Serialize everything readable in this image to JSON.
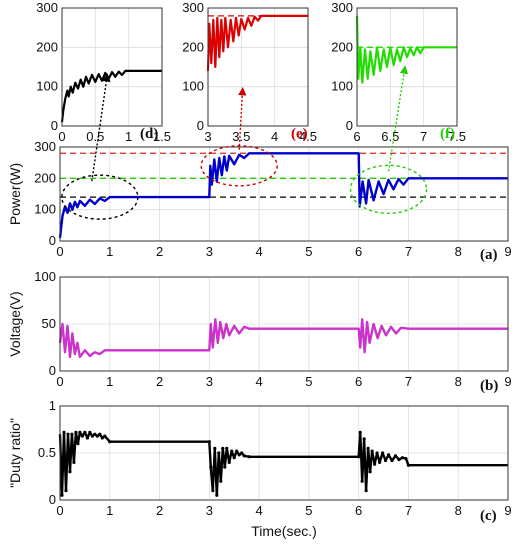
{
  "chart_data": [
    {
      "id": "inset-d",
      "type": "line",
      "tag": "(d)",
      "xlim": [
        0,
        1.5
      ],
      "ylim": [
        0,
        300
      ],
      "xticks": [
        0,
        0.5,
        1,
        1.5
      ],
      "xtick_labels": [
        "0",
        "0.5",
        "1",
        "1.5"
      ],
      "yticks": [
        0,
        100,
        200,
        300
      ],
      "ytick_labels": [
        "0",
        "100",
        "200",
        "300"
      ],
      "series": [
        {
          "color": "#000000",
          "points": [
            [
              0,
              10
            ],
            [
              0.02,
              40
            ],
            [
              0.05,
              70
            ],
            [
              0.08,
              90
            ],
            [
              0.1,
              75
            ],
            [
              0.13,
              100
            ],
            [
              0.16,
              85
            ],
            [
              0.2,
              110
            ],
            [
              0.24,
              95
            ],
            [
              0.28,
              118
            ],
            [
              0.32,
              100
            ],
            [
              0.36,
              125
            ],
            [
              0.4,
              108
            ],
            [
              0.45,
              130
            ],
            [
              0.5,
              112
            ],
            [
              0.55,
              132
            ],
            [
              0.6,
              115
            ],
            [
              0.65,
              135
            ],
            [
              0.7,
              120
            ],
            [
              0.75,
              137
            ],
            [
              0.8,
              125
            ],
            [
              0.85,
              138
            ],
            [
              0.9,
              130
            ],
            [
              0.95,
              140
            ],
            [
              1.0,
              140
            ],
            [
              1.5,
              140
            ]
          ]
        }
      ]
    },
    {
      "id": "inset-e",
      "type": "line",
      "tag": "(e)",
      "xlim": [
        3,
        4.5
      ],
      "ylim": [
        0,
        300
      ],
      "xticks": [
        3,
        3.5,
        4,
        4.5
      ],
      "xtick_labels": [
        "3",
        "3.5",
        "4",
        "4.5"
      ],
      "yticks": [
        0,
        100,
        200,
        300
      ],
      "ytick_labels": [
        "0",
        "100",
        "200",
        "300"
      ],
      "series": [
        {
          "color": "#dd0000",
          "points": [
            [
              3.0,
              140
            ],
            [
              3.02,
              260
            ],
            [
              3.05,
              160
            ],
            [
              3.08,
              270
            ],
            [
              3.11,
              150
            ],
            [
              3.14,
              275
            ],
            [
              3.17,
              175
            ],
            [
              3.2,
              270
            ],
            [
              3.23,
              190
            ],
            [
              3.26,
              275
            ],
            [
              3.3,
              200
            ],
            [
              3.34,
              270
            ],
            [
              3.38,
              215
            ],
            [
              3.42,
              275
            ],
            [
              3.46,
              230
            ],
            [
              3.5,
              272
            ],
            [
              3.55,
              245
            ],
            [
              3.6,
              275
            ],
            [
              3.65,
              255
            ],
            [
              3.7,
              278
            ],
            [
              3.75,
              268
            ],
            [
              3.8,
              280
            ],
            [
              4.5,
              280
            ]
          ]
        }
      ],
      "ref_lines": [
        {
          "y": 280,
          "color": "#dd0000",
          "dash": true
        }
      ]
    },
    {
      "id": "inset-f",
      "type": "line",
      "tag": "(f)",
      "xlim": [
        6,
        7.5
      ],
      "ylim": [
        0,
        300
      ],
      "xticks": [
        6,
        6.5,
        7,
        7.5
      ],
      "xtick_labels": [
        "6",
        "6.5",
        "7",
        "7.5"
      ],
      "yticks": [
        0,
        100,
        200,
        300
      ],
      "ytick_labels": [
        "0",
        "100",
        "200",
        "300"
      ],
      "series": [
        {
          "color": "#22dd00",
          "points": [
            [
              6.0,
              280
            ],
            [
              6.02,
              120
            ],
            [
              6.05,
              200
            ],
            [
              6.08,
              110
            ],
            [
              6.12,
              195
            ],
            [
              6.16,
              120
            ],
            [
              6.2,
              190
            ],
            [
              6.25,
              130
            ],
            [
              6.3,
              200
            ],
            [
              6.35,
              140
            ],
            [
              6.4,
              195
            ],
            [
              6.45,
              150
            ],
            [
              6.5,
              200
            ],
            [
              6.55,
              155
            ],
            [
              6.6,
              195
            ],
            [
              6.65,
              165
            ],
            [
              6.7,
              200
            ],
            [
              6.75,
              175
            ],
            [
              6.8,
              198
            ],
            [
              6.85,
              180
            ],
            [
              6.9,
              200
            ],
            [
              6.95,
              185
            ],
            [
              7.0,
              200
            ],
            [
              7.5,
              200
            ]
          ]
        }
      ],
      "ref_lines": [
        {
          "y": 200,
          "color": "#22dd00",
          "dash": true
        }
      ]
    },
    {
      "id": "power",
      "type": "line",
      "tag": "(a)",
      "ylabel": "Power(W)",
      "xlim": [
        0,
        9
      ],
      "ylim": [
        0,
        300
      ],
      "xticks": [
        0,
        1,
        2,
        3,
        4,
        5,
        6,
        7,
        8,
        9
      ],
      "xtick_labels": [
        "0",
        "1",
        "2",
        "3",
        "4",
        "5",
        "6",
        "7",
        "8",
        "9"
      ],
      "yticks": [
        0,
        100,
        200,
        300
      ],
      "ytick_labels": [
        "0",
        "100",
        "200",
        "300"
      ],
      "ref_lines": [
        {
          "y": 280,
          "color": "#dd2222",
          "dash": true
        },
        {
          "y": 200,
          "color": "#22cc00",
          "dash": true
        },
        {
          "y": 140,
          "color": "#000000",
          "dash": true
        }
      ],
      "series": [
        {
          "color": "#0000cc",
          "points": [
            [
              0,
              10
            ],
            [
              0.05,
              80
            ],
            [
              0.1,
              110
            ],
            [
              0.15,
              90
            ],
            [
              0.2,
              120
            ],
            [
              0.25,
              100
            ],
            [
              0.3,
              125
            ],
            [
              0.35,
              108
            ],
            [
              0.4,
              128
            ],
            [
              0.5,
              112
            ],
            [
              0.6,
              132
            ],
            [
              0.7,
              118
            ],
            [
              0.8,
              136
            ],
            [
              0.9,
              128
            ],
            [
              1.0,
              140
            ],
            [
              3.0,
              140
            ],
            [
              3.02,
              240
            ],
            [
              3.05,
              180
            ],
            [
              3.1,
              260
            ],
            [
              3.15,
              190
            ],
            [
              3.2,
              265
            ],
            [
              3.25,
              210
            ],
            [
              3.3,
              270
            ],
            [
              3.35,
              225
            ],
            [
              3.4,
              272
            ],
            [
              3.5,
              245
            ],
            [
              3.6,
              275
            ],
            [
              3.7,
              265
            ],
            [
              3.8,
              280
            ],
            [
              6.0,
              280
            ],
            [
              6.02,
              110
            ],
            [
              6.08,
              190
            ],
            [
              6.15,
              120
            ],
            [
              6.2,
              195
            ],
            [
              6.3,
              130
            ],
            [
              6.4,
              190
            ],
            [
              6.5,
              150
            ],
            [
              6.6,
              195
            ],
            [
              6.7,
              165
            ],
            [
              6.8,
              198
            ],
            [
              6.9,
              180
            ],
            [
              7.0,
              200
            ],
            [
              9.0,
              200
            ]
          ]
        }
      ]
    },
    {
      "id": "voltage",
      "type": "line",
      "tag": "(b)",
      "ylabel": "Voltage(V)",
      "xlim": [
        0,
        9
      ],
      "ylim": [
        0,
        100
      ],
      "xticks": [
        0,
        1,
        2,
        3,
        4,
        5,
        6,
        7,
        8,
        9
      ],
      "xtick_labels": [
        "0",
        "1",
        "2",
        "3",
        "4",
        "5",
        "6",
        "7",
        "8",
        "9"
      ],
      "yticks": [
        0,
        50,
        100
      ],
      "ytick_labels": [
        "0",
        "50",
        "100"
      ],
      "series": [
        {
          "color": "#cc33cc",
          "points": [
            [
              0,
              30
            ],
            [
              0.05,
              50
            ],
            [
              0.1,
              20
            ],
            [
              0.15,
              48
            ],
            [
              0.2,
              15
            ],
            [
              0.25,
              40
            ],
            [
              0.3,
              18
            ],
            [
              0.35,
              30
            ],
            [
              0.4,
              15
            ],
            [
              0.5,
              22
            ],
            [
              0.6,
              16
            ],
            [
              0.7,
              20
            ],
            [
              0.8,
              18
            ],
            [
              0.9,
              22
            ],
            [
              1.0,
              22
            ],
            [
              3.0,
              22
            ],
            [
              3.03,
              50
            ],
            [
              3.07,
              25
            ],
            [
              3.12,
              55
            ],
            [
              3.17,
              30
            ],
            [
              3.22,
              52
            ],
            [
              3.28,
              35
            ],
            [
              3.34,
              50
            ],
            [
              3.4,
              38
            ],
            [
              3.5,
              48
            ],
            [
              3.6,
              40
            ],
            [
              3.7,
              47
            ],
            [
              3.8,
              45
            ],
            [
              6.0,
              45
            ],
            [
              6.03,
              25
            ],
            [
              6.07,
              55
            ],
            [
              6.12,
              20
            ],
            [
              6.17,
              52
            ],
            [
              6.22,
              30
            ],
            [
              6.3,
              50
            ],
            [
              6.38,
              35
            ],
            [
              6.46,
              48
            ],
            [
              6.55,
              38
            ],
            [
              6.65,
              47
            ],
            [
              6.75,
              40
            ],
            [
              6.85,
              46
            ],
            [
              7.0,
              45
            ],
            [
              9.0,
              45
            ]
          ]
        }
      ]
    },
    {
      "id": "duty",
      "type": "line",
      "tag": "(c)",
      "ylabel": "\"Duty ratio\"",
      "xlabel": "Time(sec.)",
      "xlim": [
        0,
        9
      ],
      "ylim": [
        0,
        1
      ],
      "xticks": [
        0,
        1,
        2,
        3,
        4,
        5,
        6,
        7,
        8,
        9
      ],
      "xtick_labels": [
        "0",
        "1",
        "2",
        "3",
        "4",
        "5",
        "6",
        "7",
        "8",
        "9"
      ],
      "yticks": [
        0,
        0.5,
        1
      ],
      "ytick_labels": [
        "0",
        "0.5",
        "1"
      ],
      "series": [
        {
          "color": "#000000",
          "markers": true,
          "points": [
            [
              0,
              0.7
            ],
            [
              0.04,
              0.05
            ],
            [
              0.08,
              0.72
            ],
            [
              0.12,
              0.1
            ],
            [
              0.16,
              0.7
            ],
            [
              0.2,
              0.3
            ],
            [
              0.24,
              0.7
            ],
            [
              0.28,
              0.4
            ],
            [
              0.32,
              0.72
            ],
            [
              0.36,
              0.6
            ],
            [
              0.4,
              0.72
            ],
            [
              0.45,
              0.68
            ],
            [
              0.5,
              0.72
            ],
            [
              0.55,
              0.66
            ],
            [
              0.6,
              0.72
            ],
            [
              0.65,
              0.68
            ],
            [
              0.7,
              0.7
            ],
            [
              0.75,
              0.68
            ],
            [
              0.8,
              0.7
            ],
            [
              0.85,
              0.66
            ],
            [
              0.9,
              0.68
            ],
            [
              1.0,
              0.62
            ],
            [
              3.0,
              0.62
            ],
            [
              3.03,
              0.35
            ],
            [
              3.07,
              0.1
            ],
            [
              3.11,
              0.55
            ],
            [
              3.15,
              0.05
            ],
            [
              3.19,
              0.5
            ],
            [
              3.23,
              0.2
            ],
            [
              3.27,
              0.55
            ],
            [
              3.31,
              0.35
            ],
            [
              3.35,
              0.55
            ],
            [
              3.4,
              0.4
            ],
            [
              3.45,
              0.52
            ],
            [
              3.5,
              0.45
            ],
            [
              3.55,
              0.52
            ],
            [
              3.6,
              0.48
            ],
            [
              3.65,
              0.5
            ],
            [
              3.7,
              0.47
            ],
            [
              3.8,
              0.46
            ],
            [
              6.0,
              0.46
            ],
            [
              6.03,
              0.72
            ],
            [
              6.07,
              0.2
            ],
            [
              6.11,
              0.65
            ],
            [
              6.15,
              0.1
            ],
            [
              6.19,
              0.55
            ],
            [
              6.23,
              0.3
            ],
            [
              6.27,
              0.52
            ],
            [
              6.32,
              0.38
            ],
            [
              6.37,
              0.5
            ],
            [
              6.42,
              0.4
            ],
            [
              6.48,
              0.5
            ],
            [
              6.54,
              0.42
            ],
            [
              6.6,
              0.48
            ],
            [
              6.67,
              0.42
            ],
            [
              6.74,
              0.47
            ],
            [
              6.81,
              0.43
            ],
            [
              6.88,
              0.45
            ],
            [
              6.95,
              0.44
            ],
            [
              7.0,
              0.37
            ],
            [
              9.0,
              0.37
            ]
          ]
        }
      ]
    }
  ]
}
